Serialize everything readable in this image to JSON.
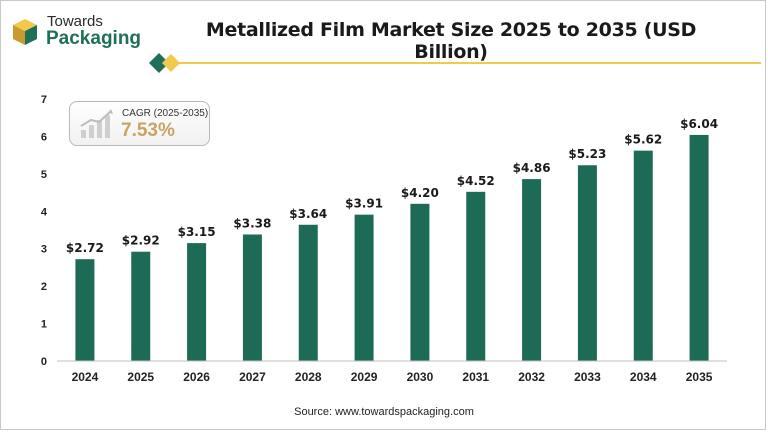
{
  "logo": {
    "line1": "Towards",
    "line2": "Packaging"
  },
  "header": {
    "title": "Metallized Film Market Size 2025 to 2035 (USD Billion)"
  },
  "cagr": {
    "label": "CAGR (2025-2035)",
    "value": "7.53%"
  },
  "source": {
    "label": "Source:",
    "value": "www.towardspackaging.com"
  },
  "colors": {
    "bar": "#1d6b57",
    "brand_green": "#1f6f5b",
    "brand_gold": "#f2c94c",
    "cagr_gold": "#c9a461"
  },
  "icons": {
    "logo": "towards-packaging-logo-icon",
    "cagr": "growth-chart-icon"
  },
  "chart_data": {
    "type": "bar",
    "categories": [
      "2024",
      "2025",
      "2026",
      "2027",
      "2028",
      "2029",
      "2030",
      "2031",
      "2032",
      "2033",
      "2034",
      "2035"
    ],
    "values": [
      2.72,
      2.92,
      3.15,
      3.38,
      3.64,
      3.91,
      4.2,
      4.52,
      4.86,
      5.23,
      5.62,
      6.04
    ],
    "labels": [
      "$2.72",
      "$2.92",
      "$3.15",
      "$3.38",
      "$3.64",
      "$3.91",
      "$4.20",
      "$4.52",
      "$4.86",
      "$5.23",
      "$5.62",
      "$6.04"
    ],
    "title": "Metallized Film Market Size 2025 to 2035 (USD Billion)",
    "xlabel": "",
    "ylabel": "",
    "ylim": [
      0,
      7
    ],
    "yticks": [
      "0",
      "1",
      "2",
      "3",
      "4",
      "5",
      "6",
      "7"
    ],
    "grid": false,
    "legend": "none"
  }
}
